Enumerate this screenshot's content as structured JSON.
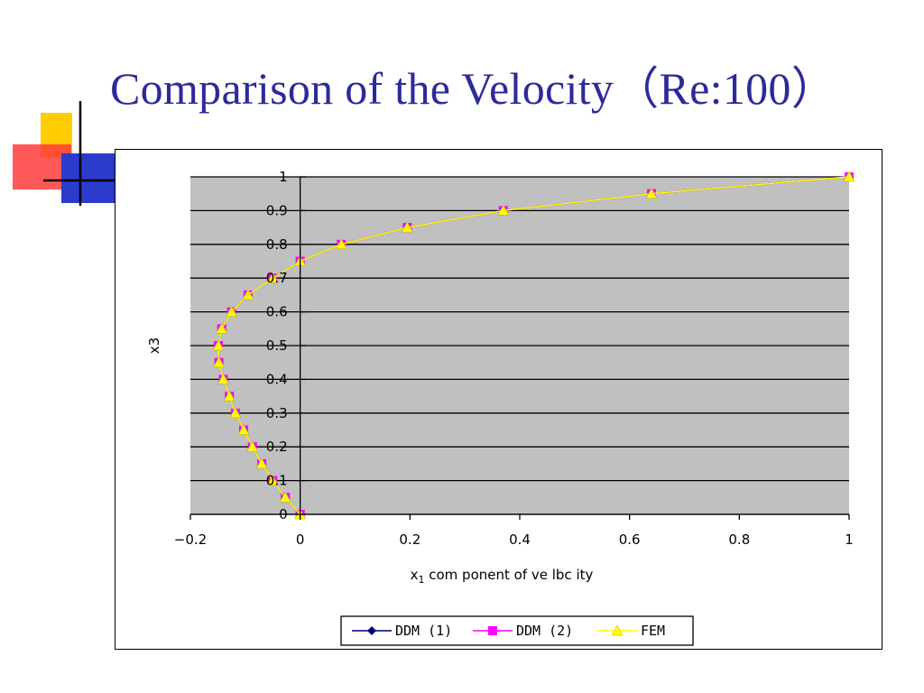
{
  "slide": {
    "title": "Comparison of the Velocity（Re:100）",
    "deco_colors": {
      "yellow": "#ffcc00",
      "red": "#ff3b3b",
      "blue": "#2b3bcc",
      "line": "#000000"
    }
  },
  "chart_data": {
    "type": "line",
    "title": "",
    "xlabel_main": "x",
    "xlabel_sub": "1",
    "xlabel_rest": " com ponent of ve lbc ity",
    "ylabel": "x3",
    "xlim": [
      -0.2,
      1
    ],
    "ylim": [
      0,
      1
    ],
    "xticks": [
      "−0.2",
      "0",
      "0.2",
      "0.4",
      "0.6",
      "0.8",
      "1"
    ],
    "xtick_values": [
      -0.2,
      0,
      0.2,
      0.4,
      0.6,
      0.8,
      1
    ],
    "yticks": [
      "0",
      "0.1",
      "0.2",
      "0.3",
      "0.4",
      "0.5",
      "0.6",
      "0.7",
      "0.8",
      "0.9",
      "1"
    ],
    "ytick_values": [
      0,
      0.1,
      0.2,
      0.3,
      0.4,
      0.5,
      0.6,
      0.7,
      0.8,
      0.9,
      1
    ],
    "grid": true,
    "plot_background": "#c0c0c0",
    "legend_position": "bottom",
    "series": [
      {
        "name": "DDM (1)",
        "color": "#000080",
        "marker": "diamond",
        "x": [
          0,
          -0.027,
          -0.05,
          -0.07,
          -0.087,
          -0.103,
          -0.118,
          -0.129,
          -0.14,
          -0.148,
          -0.149,
          -0.143,
          -0.125,
          -0.095,
          -0.05,
          0,
          0.075,
          0.195,
          0.37,
          0.64,
          1
        ],
        "y": [
          0,
          0.05,
          0.1,
          0.15,
          0.2,
          0.25,
          0.3,
          0.35,
          0.4,
          0.45,
          0.5,
          0.55,
          0.6,
          0.65,
          0.7,
          0.75,
          0.8,
          0.85,
          0.9,
          0.95,
          1
        ]
      },
      {
        "name": "DDM (2)",
        "color": "#ff00ff",
        "marker": "square",
        "x": [
          0,
          -0.027,
          -0.05,
          -0.07,
          -0.087,
          -0.103,
          -0.118,
          -0.129,
          -0.14,
          -0.148,
          -0.149,
          -0.143,
          -0.125,
          -0.095,
          -0.05,
          0,
          0.075,
          0.195,
          0.37,
          0.64,
          1
        ],
        "y": [
          0,
          0.05,
          0.1,
          0.15,
          0.2,
          0.25,
          0.3,
          0.35,
          0.4,
          0.45,
          0.5,
          0.55,
          0.6,
          0.65,
          0.7,
          0.75,
          0.8,
          0.85,
          0.9,
          0.95,
          1
        ]
      },
      {
        "name": "FEM",
        "color": "#ffff00",
        "marker": "triangle",
        "x": [
          0,
          -0.027,
          -0.05,
          -0.07,
          -0.087,
          -0.103,
          -0.118,
          -0.129,
          -0.14,
          -0.148,
          -0.149,
          -0.143,
          -0.125,
          -0.095,
          -0.05,
          0,
          0.075,
          0.195,
          0.37,
          0.64,
          1
        ],
        "y": [
          0,
          0.05,
          0.1,
          0.15,
          0.2,
          0.25,
          0.3,
          0.35,
          0.4,
          0.45,
          0.5,
          0.55,
          0.6,
          0.65,
          0.7,
          0.75,
          0.8,
          0.85,
          0.9,
          0.95,
          1
        ]
      }
    ]
  }
}
